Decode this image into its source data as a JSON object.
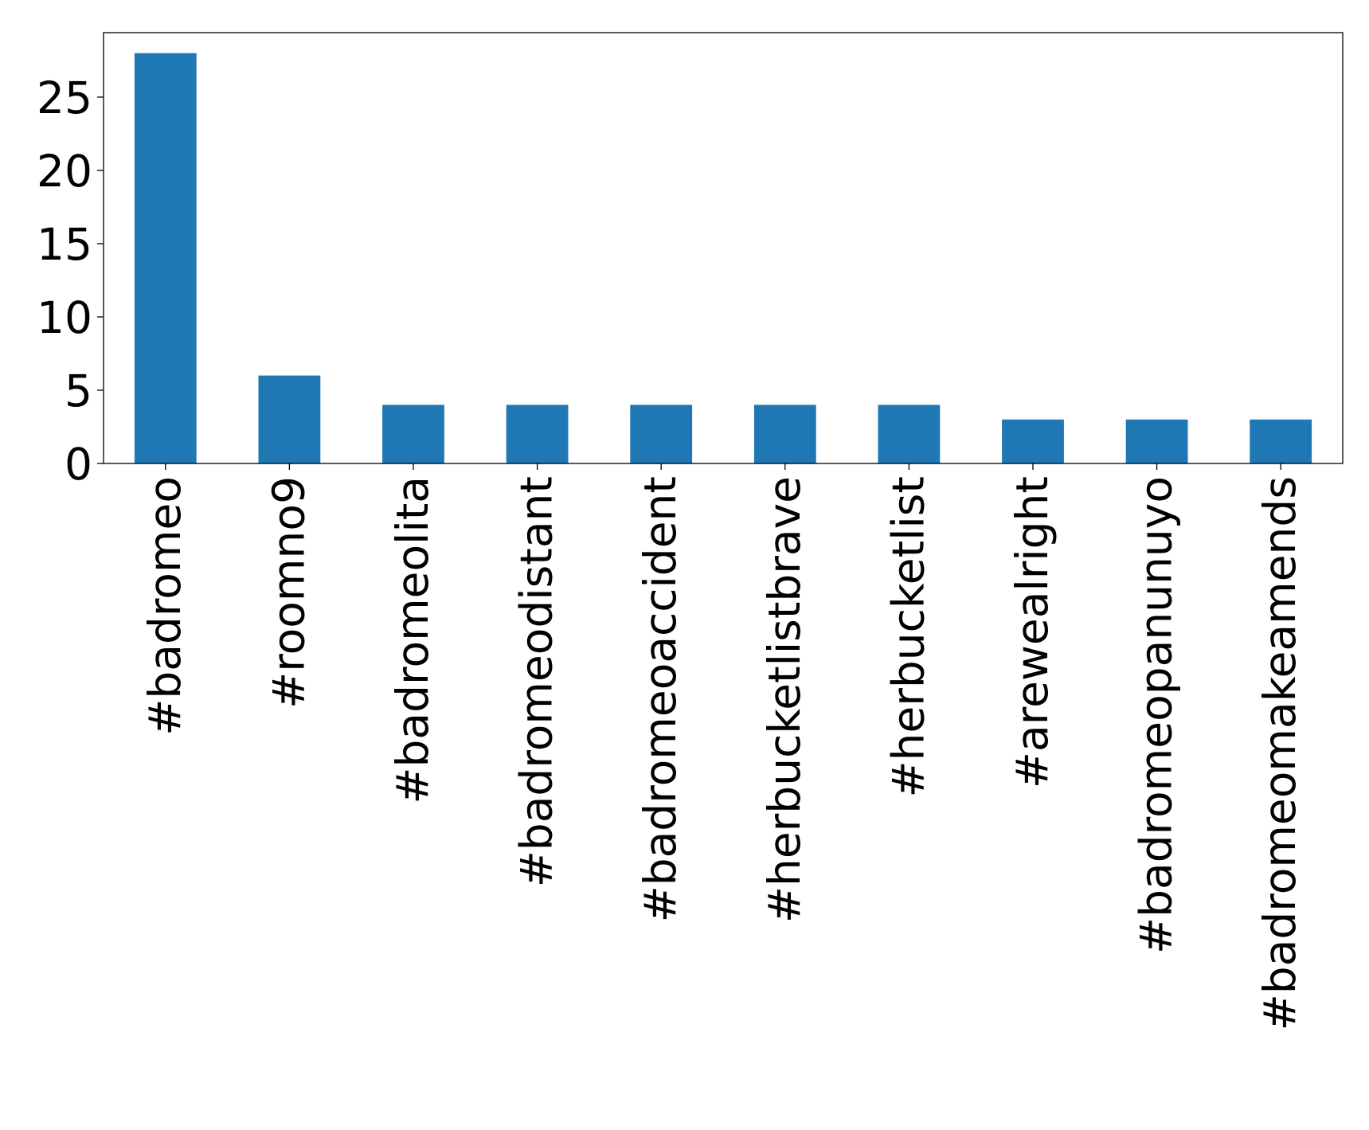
{
  "chart_data": {
    "type": "bar",
    "title": "",
    "xlabel": "",
    "ylabel": "",
    "categories": [
      "#badromeo",
      "#roomno9",
      "#badromeolita",
      "#badromeodistant",
      "#badromeoaccident",
      "#herbucketlistbrave",
      "#herbucketlist",
      "#arewealright",
      "#badromeopanunuyo",
      "#badromeomakeamends"
    ],
    "values": [
      28,
      6,
      4,
      4,
      4,
      4,
      4,
      3,
      3,
      3
    ],
    "ylim": [
      0,
      29.4
    ],
    "yticks": [
      0,
      5,
      10,
      15,
      20,
      25
    ],
    "grid": false,
    "legend": "none",
    "bar_color": "#1f77b4"
  }
}
